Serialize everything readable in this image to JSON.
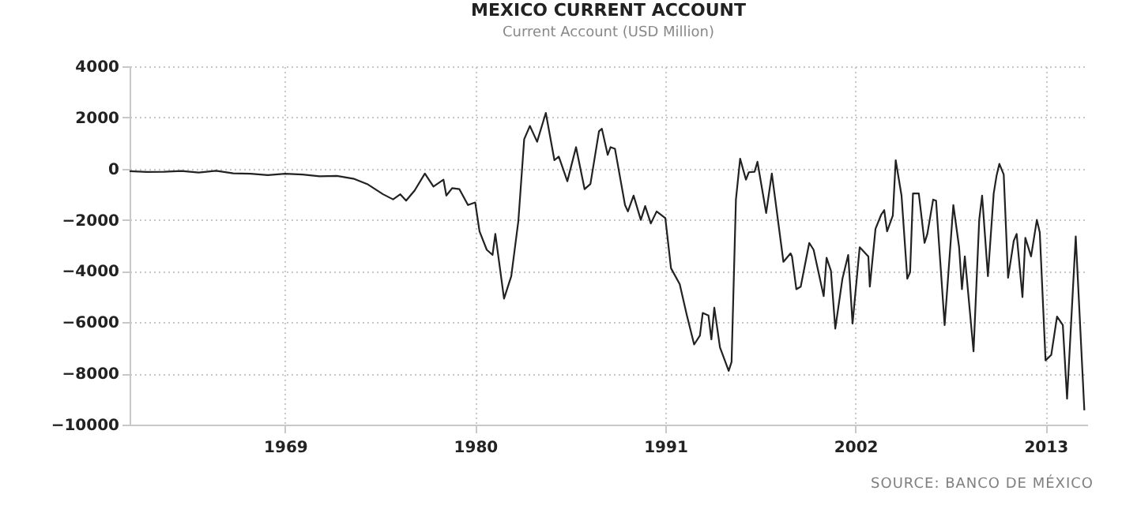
{
  "chart_data": {
    "type": "line",
    "title": "MEXICO CURRENT ACCOUNT",
    "subtitle": "Current Account (USD Million)",
    "annotations": [
      "SOURCE: BANCO DE MÉXICO"
    ],
    "x": [
      "1960-01",
      "1961-01",
      "1962-01",
      "1963-01",
      "1964-01",
      "1965-01",
      "1966-01",
      "1967-01",
      "1968-01",
      "1969-01",
      "1970-01",
      "1971-01",
      "1972-01",
      "1973-01",
      "1973-10",
      "1974-09",
      "1975-04",
      "1975-09",
      "1976-01",
      "1976-07",
      "1977-02",
      "1977-08",
      "1978-03",
      "1978-05",
      "1978-09",
      "1979-02",
      "1979-08",
      "1980-01",
      "1980-04",
      "1980-09",
      "1981-01",
      "1981-03",
      "1981-09",
      "1982-02",
      "1982-07",
      "1982-11",
      "1983-03",
      "1983-08",
      "1984-02",
      "1984-08",
      "1984-11",
      "1985-05",
      "1985-11",
      "1986-05",
      "1986-09",
      "1987-03",
      "1987-05",
      "1987-09",
      "1987-11",
      "1988-02",
      "1988-09",
      "1988-11",
      "1989-03",
      "1989-08",
      "1989-11",
      "1990-03",
      "1990-07",
      "1991-01",
      "1991-05",
      "1991-11",
      "1992-04",
      "1992-09",
      "1993-01",
      "1993-03",
      "1993-07",
      "1993-09",
      "1993-11",
      "1994-03",
      "1994-09",
      "1994-11",
      "1995-02",
      "1995-05",
      "1995-09",
      "1995-11",
      "1996-03",
      "1996-05",
      "1996-11",
      "1997-03",
      "1997-11",
      "1998-04",
      "1998-05",
      "1998-08",
      "1998-11",
      "1999-05",
      "1999-08",
      "2000-03",
      "2000-05",
      "2000-08",
      "2000-11",
      "2001-04",
      "2001-08",
      "2001-11",
      "2002-04",
      "2002-10",
      "2002-11",
      "2003-03",
      "2003-07",
      "2003-09",
      "2003-11",
      "2004-03",
      "2004-05",
      "2004-09",
      "2005-01",
      "2005-03",
      "2005-05",
      "2005-09",
      "2006-01",
      "2006-03",
      "2006-07",
      "2006-09",
      "2007-03",
      "2007-09",
      "2008-01",
      "2008-03",
      "2008-05",
      "2008-11",
      "2009-03",
      "2009-05",
      "2009-09",
      "2010-01",
      "2010-03",
      "2010-05",
      "2010-08",
      "2010-11",
      "2011-03",
      "2011-05",
      "2011-09",
      "2011-11",
      "2012-03",
      "2012-07",
      "2012-09",
      "2013-01",
      "2013-05",
      "2013-09",
      "2014-01",
      "2014-04",
      "2014-10",
      "2015-04"
    ],
    "series": [
      {
        "color": "#222222",
        "values": [
          -100,
          -130,
          -120,
          -90,
          -150,
          -80,
          -180,
          -200,
          -250,
          -200,
          -230,
          -300,
          -280,
          -400,
          -600,
          -1000,
          -1200,
          -1000,
          -1250,
          -850,
          -190,
          -700,
          -430,
          -1050,
          -760,
          -800,
          -1420,
          -1320,
          -2450,
          -3170,
          -3370,
          -2550,
          -5080,
          -4200,
          -2040,
          1150,
          1670,
          1050,
          2180,
          330,
          470,
          -490,
          840,
          -800,
          -600,
          1460,
          1560,
          540,
          840,
          780,
          -1420,
          -1670,
          -1050,
          -2000,
          -1460,
          -2140,
          -1670,
          -1930,
          -3890,
          -4510,
          -5740,
          -6870,
          -6520,
          -5640,
          -5740,
          -6670,
          -5430,
          -6980,
          -7900,
          -7550,
          -1210,
          390,
          -430,
          -140,
          -120,
          270,
          -1730,
          -190,
          -3640,
          -3310,
          -3430,
          -4710,
          -4610,
          -2900,
          -3170,
          -4980,
          -3480,
          -3990,
          -6250,
          -4300,
          -3370,
          -6050,
          -3070,
          -3430,
          -4610,
          -2350,
          -1790,
          -1620,
          -2450,
          -1830,
          330,
          -1050,
          -4300,
          -4050,
          -970,
          -970,
          -2900,
          -2550,
          -1210,
          -1250,
          -6110,
          -1420,
          -3070,
          -4710,
          -3430,
          -7140,
          -2000,
          -1050,
          -4200,
          -970,
          -290,
          190,
          -230,
          -4260,
          -2820,
          -2550,
          -5020,
          -2700,
          -3430,
          -2000,
          -2490,
          -7490,
          -7280,
          -5780,
          -6110,
          -8990,
          -2650,
          -9440
        ]
      }
    ],
    "xlim": [
      "1960-01",
      "2015-06"
    ],
    "xticks": [
      "1969",
      "1980",
      "1991",
      "2002",
      "2013"
    ],
    "ylim": [
      -10000,
      4000
    ],
    "yticks": [
      -10000,
      -8000,
      -6000,
      -4000,
      -2000,
      0,
      2000,
      4000
    ],
    "grid": true
  }
}
